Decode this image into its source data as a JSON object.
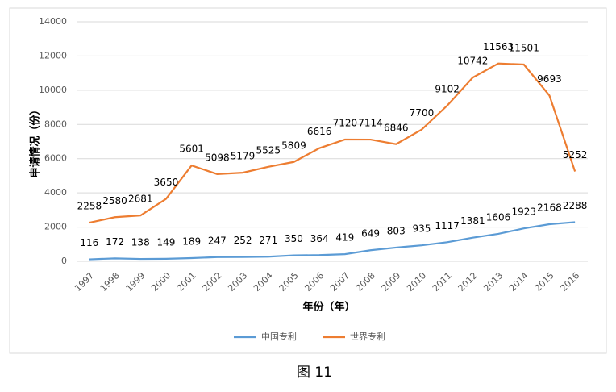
{
  "chart_data": {
    "type": "line",
    "y_label": "申请情况（份）",
    "x_label": "年份（年）",
    "caption": "图 11",
    "categories": [
      "1997",
      "1998",
      "1999",
      "2000",
      "2001",
      "2002",
      "2003",
      "2004",
      "2005",
      "2006",
      "2007",
      "2008",
      "2009",
      "2010",
      "2011",
      "2012",
      "2013",
      "2014",
      "2015",
      "2016"
    ],
    "series": [
      {
        "name": "中国专利",
        "color": "#5b9bd5",
        "values": [
          116,
          172,
          138,
          149,
          189,
          247,
          252,
          271,
          350,
          364,
          419,
          649,
          803,
          935,
          1117,
          1381,
          1606,
          1923,
          2168,
          2288
        ]
      },
      {
        "name": "世界专利",
        "color": "#ed7d31",
        "values": [
          2258,
          2580,
          2681,
          3650,
          5601,
          5098,
          5179,
          5525,
          5809,
          6616,
          7120,
          7114,
          6846,
          7700,
          9102,
          10742,
          11563,
          11501,
          9693,
          5252
        ]
      }
    ],
    "ylim": [
      0,
      14000
    ],
    "yticks": [
      0,
      2000,
      4000,
      6000,
      8000,
      10000,
      12000,
      14000
    ],
    "grid": true,
    "legend": "bottom"
  }
}
